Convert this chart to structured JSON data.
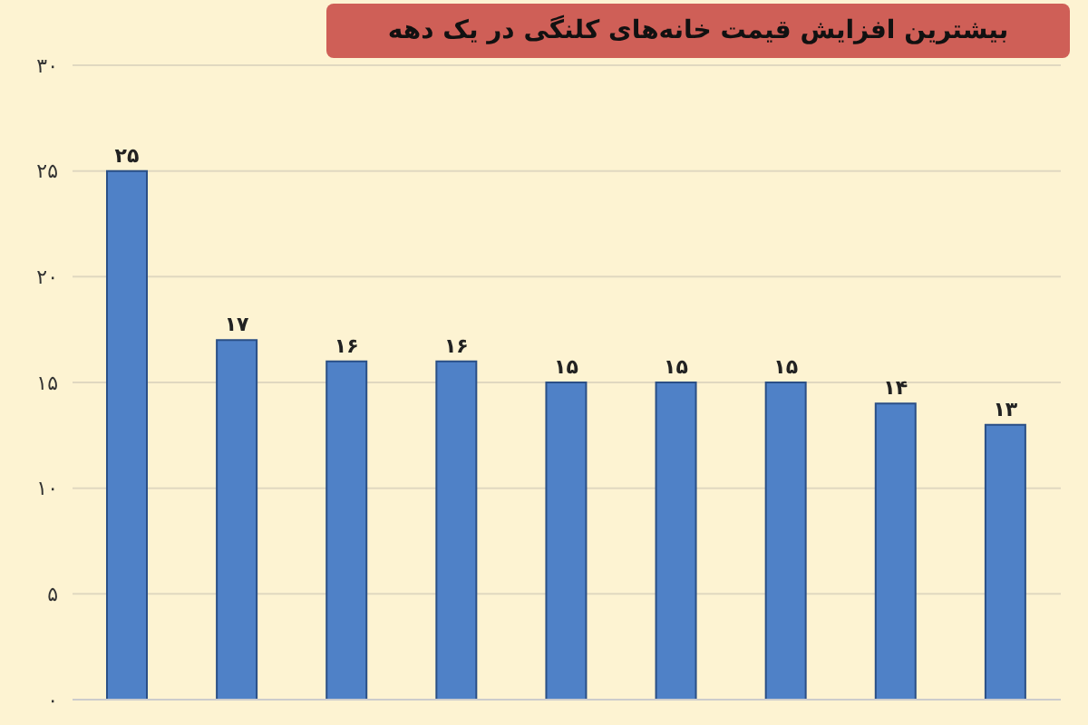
{
  "chart_data": {
    "type": "bar",
    "title": "بیشترین افزایش قیمت خانه‌های کلنگی در یک دهه",
    "categories": [
      null,
      null,
      null,
      null,
      null,
      null,
      null,
      null,
      null
    ],
    "values": [
      25,
      17,
      16,
      16,
      15,
      15,
      15,
      14,
      13
    ],
    "value_labels": [
      "۲۵",
      "۱۷",
      "۱۶",
      "۱۶",
      "۱۵",
      "۱۵",
      "۱۵",
      "۱۴",
      "۱۳"
    ],
    "color": "#4f81c7",
    "ylim": [
      0,
      30
    ],
    "yticks": [
      {
        "value": 0,
        "label": "۰"
      },
      {
        "value": 5,
        "label": "۵"
      },
      {
        "value": 10,
        "label": "۱۰"
      },
      {
        "value": 15,
        "label": "۱۵"
      },
      {
        "value": 20,
        "label": "۲۰"
      },
      {
        "value": 25,
        "label": "۲۵"
      },
      {
        "value": 30,
        "label": "۳۰"
      }
    ],
    "grid": "y"
  }
}
